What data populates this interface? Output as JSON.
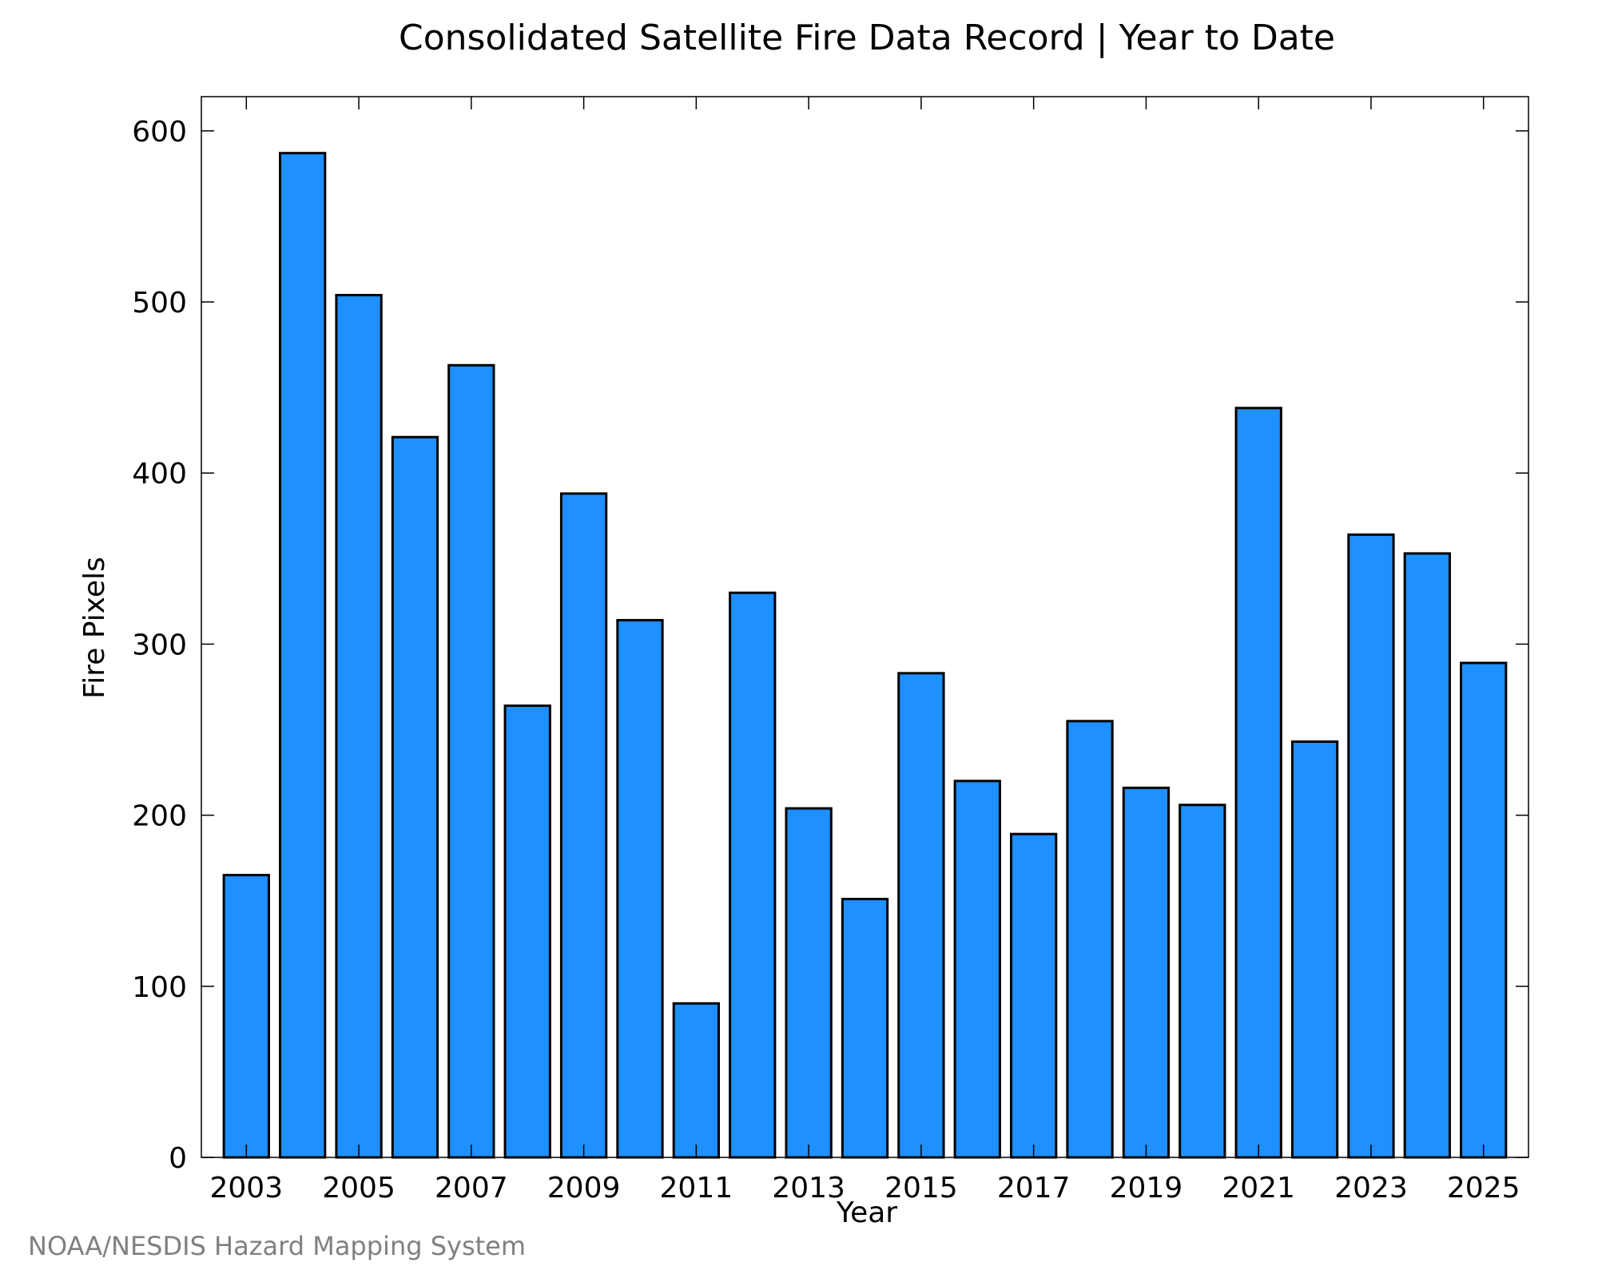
{
  "chart_data": {
    "type": "bar",
    "title": "Consolidated Satellite Fire Data Record | Year to Date",
    "xlabel": "Year",
    "ylabel": "Fire Pixels",
    "ylim": [
      0,
      620
    ],
    "yticks": [
      0,
      100,
      200,
      300,
      400,
      500,
      600
    ],
    "xlim": [
      2002.2,
      2025.8
    ],
    "xticks_labeled": [
      2003,
      2005,
      2007,
      2009,
      2011,
      2013,
      2015,
      2017,
      2019,
      2021,
      2023,
      2025
    ],
    "grid": false,
    "legend": "none",
    "bar_color": "#1E90FF",
    "bar_edge_color": "#000000",
    "categories": [
      2003,
      2004,
      2005,
      2006,
      2007,
      2008,
      2009,
      2010,
      2011,
      2012,
      2013,
      2014,
      2015,
      2016,
      2017,
      2018,
      2019,
      2020,
      2021,
      2022,
      2023,
      2024,
      2025
    ],
    "values": [
      165,
      587,
      504,
      421,
      463,
      264,
      388,
      314,
      90,
      330,
      204,
      151,
      283,
      220,
      189,
      255,
      216,
      206,
      438,
      243,
      364,
      353,
      289
    ]
  },
  "credit": {
    "text": "NOAA/NESDIS Hazard Mapping System",
    "color": "#808080"
  }
}
